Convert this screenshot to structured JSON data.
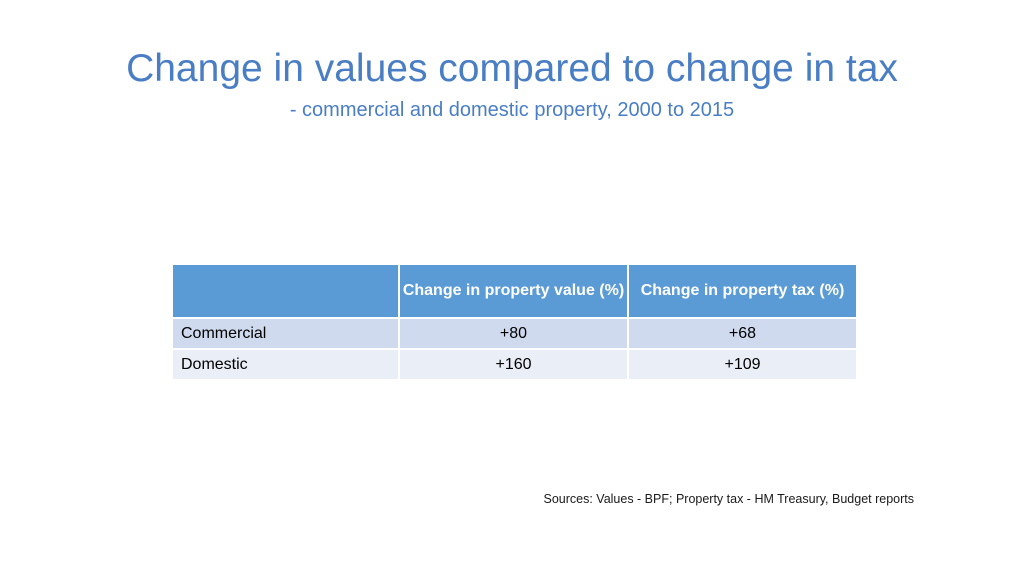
{
  "title": "Change in values compared to change in tax",
  "subtitle": "- commercial and domestic property, 2000 to 2015",
  "table": {
    "headers": [
      "",
      "Change in property value (%)",
      "Change in property tax (%)"
    ],
    "rows": [
      {
        "label": "Commercial",
        "value_change": "+80",
        "tax_change": "+68"
      },
      {
        "label": "Domestic",
        "value_change": "+160",
        "tax_change": "+109"
      }
    ]
  },
  "sources": "Sources: Values - BPF; Property tax - HM Treasury, Budget reports",
  "colors": {
    "title": "#4a7ec4",
    "header_bg": "#5b9bd5",
    "row1_bg": "#cfdaee",
    "row2_bg": "#e9eef7"
  }
}
